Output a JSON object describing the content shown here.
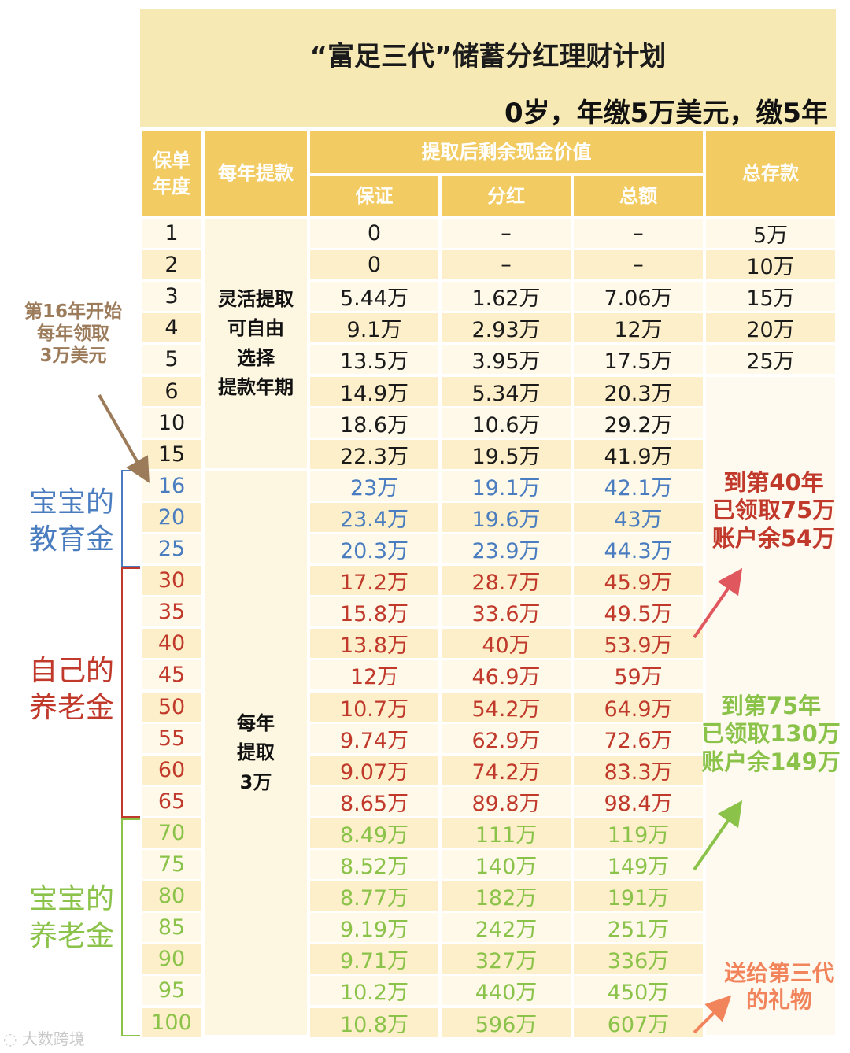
{
  "title": "“富足三代”储蓄分红理财计划",
  "subtitle": "0岁，年缴5万美元，缴5年",
  "headers": {
    "year": "保单年度",
    "annual_withdrawal": "每年提款",
    "remaining_value": "提取后剩余现金价值",
    "guaranteed": "保证",
    "dividend": "分红",
    "total": "总额",
    "total_deposit": "总存款"
  },
  "withdraw_col": {
    "flexible": "灵活提取可自由选择提款年期",
    "flexible_lines": [
      "灵活提取",
      "可自由",
      "选择",
      "提款年期"
    ],
    "annual": "每年提取3万",
    "annual_lines": [
      "每年",
      "提取",
      "3万"
    ]
  },
  "rows": [
    {
      "year": "1",
      "guaranteed": "0",
      "dividend": "–",
      "total": "–",
      "deposit": "5万",
      "group": "base"
    },
    {
      "year": "2",
      "guaranteed": "0",
      "dividend": "–",
      "total": "–",
      "deposit": "10万",
      "group": "base"
    },
    {
      "year": "3",
      "guaranteed": "5.44万",
      "dividend": "1.62万",
      "total": "7.06万",
      "deposit": "15万",
      "group": "base"
    },
    {
      "year": "4",
      "guaranteed": "9.1万",
      "dividend": "2.93万",
      "total": "12万",
      "deposit": "20万",
      "group": "base"
    },
    {
      "year": "5",
      "guaranteed": "13.5万",
      "dividend": "3.95万",
      "total": "17.5万",
      "deposit": "25万",
      "group": "base"
    },
    {
      "year": "6",
      "guaranteed": "14.9万",
      "dividend": "5.34万",
      "total": "20.3万",
      "deposit": "",
      "group": "base"
    },
    {
      "year": "10",
      "guaranteed": "18.6万",
      "dividend": "10.6万",
      "total": "29.2万",
      "deposit": "",
      "group": "base"
    },
    {
      "year": "15",
      "guaranteed": "22.3万",
      "dividend": "19.5万",
      "total": "41.9万",
      "deposit": "",
      "group": "base"
    },
    {
      "year": "16",
      "guaranteed": "23万",
      "dividend": "19.1万",
      "total": "42.1万",
      "deposit": "",
      "group": "edu"
    },
    {
      "year": "20",
      "guaranteed": "23.4万",
      "dividend": "19.6万",
      "total": "43万",
      "deposit": "",
      "group": "edu"
    },
    {
      "year": "25",
      "guaranteed": "20.3万",
      "dividend": "23.9万",
      "total": "44.3万",
      "deposit": "",
      "group": "edu"
    },
    {
      "year": "30",
      "guaranteed": "17.2万",
      "dividend": "28.7万",
      "total": "45.9万",
      "deposit": "",
      "group": "self"
    },
    {
      "year": "35",
      "guaranteed": "15.8万",
      "dividend": "33.6万",
      "total": "49.5万",
      "deposit": "",
      "group": "self"
    },
    {
      "year": "40",
      "guaranteed": "13.8万",
      "dividend": "40万",
      "total": "53.9万",
      "deposit": "",
      "group": "self"
    },
    {
      "year": "45",
      "guaranteed": "12万",
      "dividend": "46.9万",
      "total": "59万",
      "deposit": "",
      "group": "self"
    },
    {
      "year": "50",
      "guaranteed": "10.7万",
      "dividend": "54.2万",
      "total": "64.9万",
      "deposit": "",
      "group": "self"
    },
    {
      "year": "55",
      "guaranteed": "9.74万",
      "dividend": "62.9万",
      "total": "72.6万",
      "deposit": "",
      "group": "self"
    },
    {
      "year": "60",
      "guaranteed": "9.07万",
      "dividend": "74.2万",
      "total": "83.3万",
      "deposit": "",
      "group": "self"
    },
    {
      "year": "65",
      "guaranteed": "8.65万",
      "dividend": "89.8万",
      "total": "98.4万",
      "deposit": "",
      "group": "self"
    },
    {
      "year": "70",
      "guaranteed": "8.49万",
      "dividend": "111万",
      "total": "119万",
      "deposit": "",
      "group": "baby"
    },
    {
      "year": "75",
      "guaranteed": "8.52万",
      "dividend": "140万",
      "total": "149万",
      "deposit": "",
      "group": "baby"
    },
    {
      "year": "80",
      "guaranteed": "8.77万",
      "dividend": "182万",
      "total": "191万",
      "deposit": "",
      "group": "baby"
    },
    {
      "year": "85",
      "guaranteed": "9.19万",
      "dividend": "242万",
      "total": "251万",
      "deposit": "",
      "group": "baby"
    },
    {
      "year": "90",
      "guaranteed": "9.71万",
      "dividend": "327万",
      "total": "336万",
      "deposit": "",
      "group": "baby"
    },
    {
      "year": "95",
      "guaranteed": "10.2万",
      "dividend": "440万",
      "total": "450万",
      "deposit": "",
      "group": "baby"
    },
    {
      "year": "100",
      "guaranteed": "10.8万",
      "dividend": "596万",
      "total": "607万",
      "deposit": "",
      "group": "baby"
    }
  ],
  "colors": {
    "base": "#1a1a1a",
    "edu": "#4a7dc0",
    "self": "#c0392b",
    "baby": "#8bc34a",
    "header": "#f2cc62",
    "note_left": "#9c7b5a",
    "note_gift": "#f2845c"
  },
  "side_labels": {
    "edu": "宝宝的教育金",
    "edu_lines": [
      "宝宝的",
      "教育金"
    ],
    "self": "自己的养老金",
    "self_lines": [
      "自己的",
      "养老金"
    ],
    "baby": "宝宝的养老金",
    "baby_lines": [
      "宝宝的",
      "养老金"
    ]
  },
  "notes": {
    "left": "第16年开始每年领取3万美元",
    "left_lines": [
      "第16年开始",
      "每年领取",
      "3万美元"
    ],
    "red": "到第40年已领取75万账户余54万",
    "red_lines": [
      "到第40年",
      "已领取75万",
      "账户余54万"
    ],
    "green": "到第75年已领取130万账户余149万",
    "green_lines": [
      "到第75年",
      "已领取130万",
      "账户余149万"
    ],
    "gift": "送给第三代的礼物",
    "gift_lines": [
      "送给第三代",
      "的礼物"
    ]
  },
  "watermark": "大数跨境"
}
